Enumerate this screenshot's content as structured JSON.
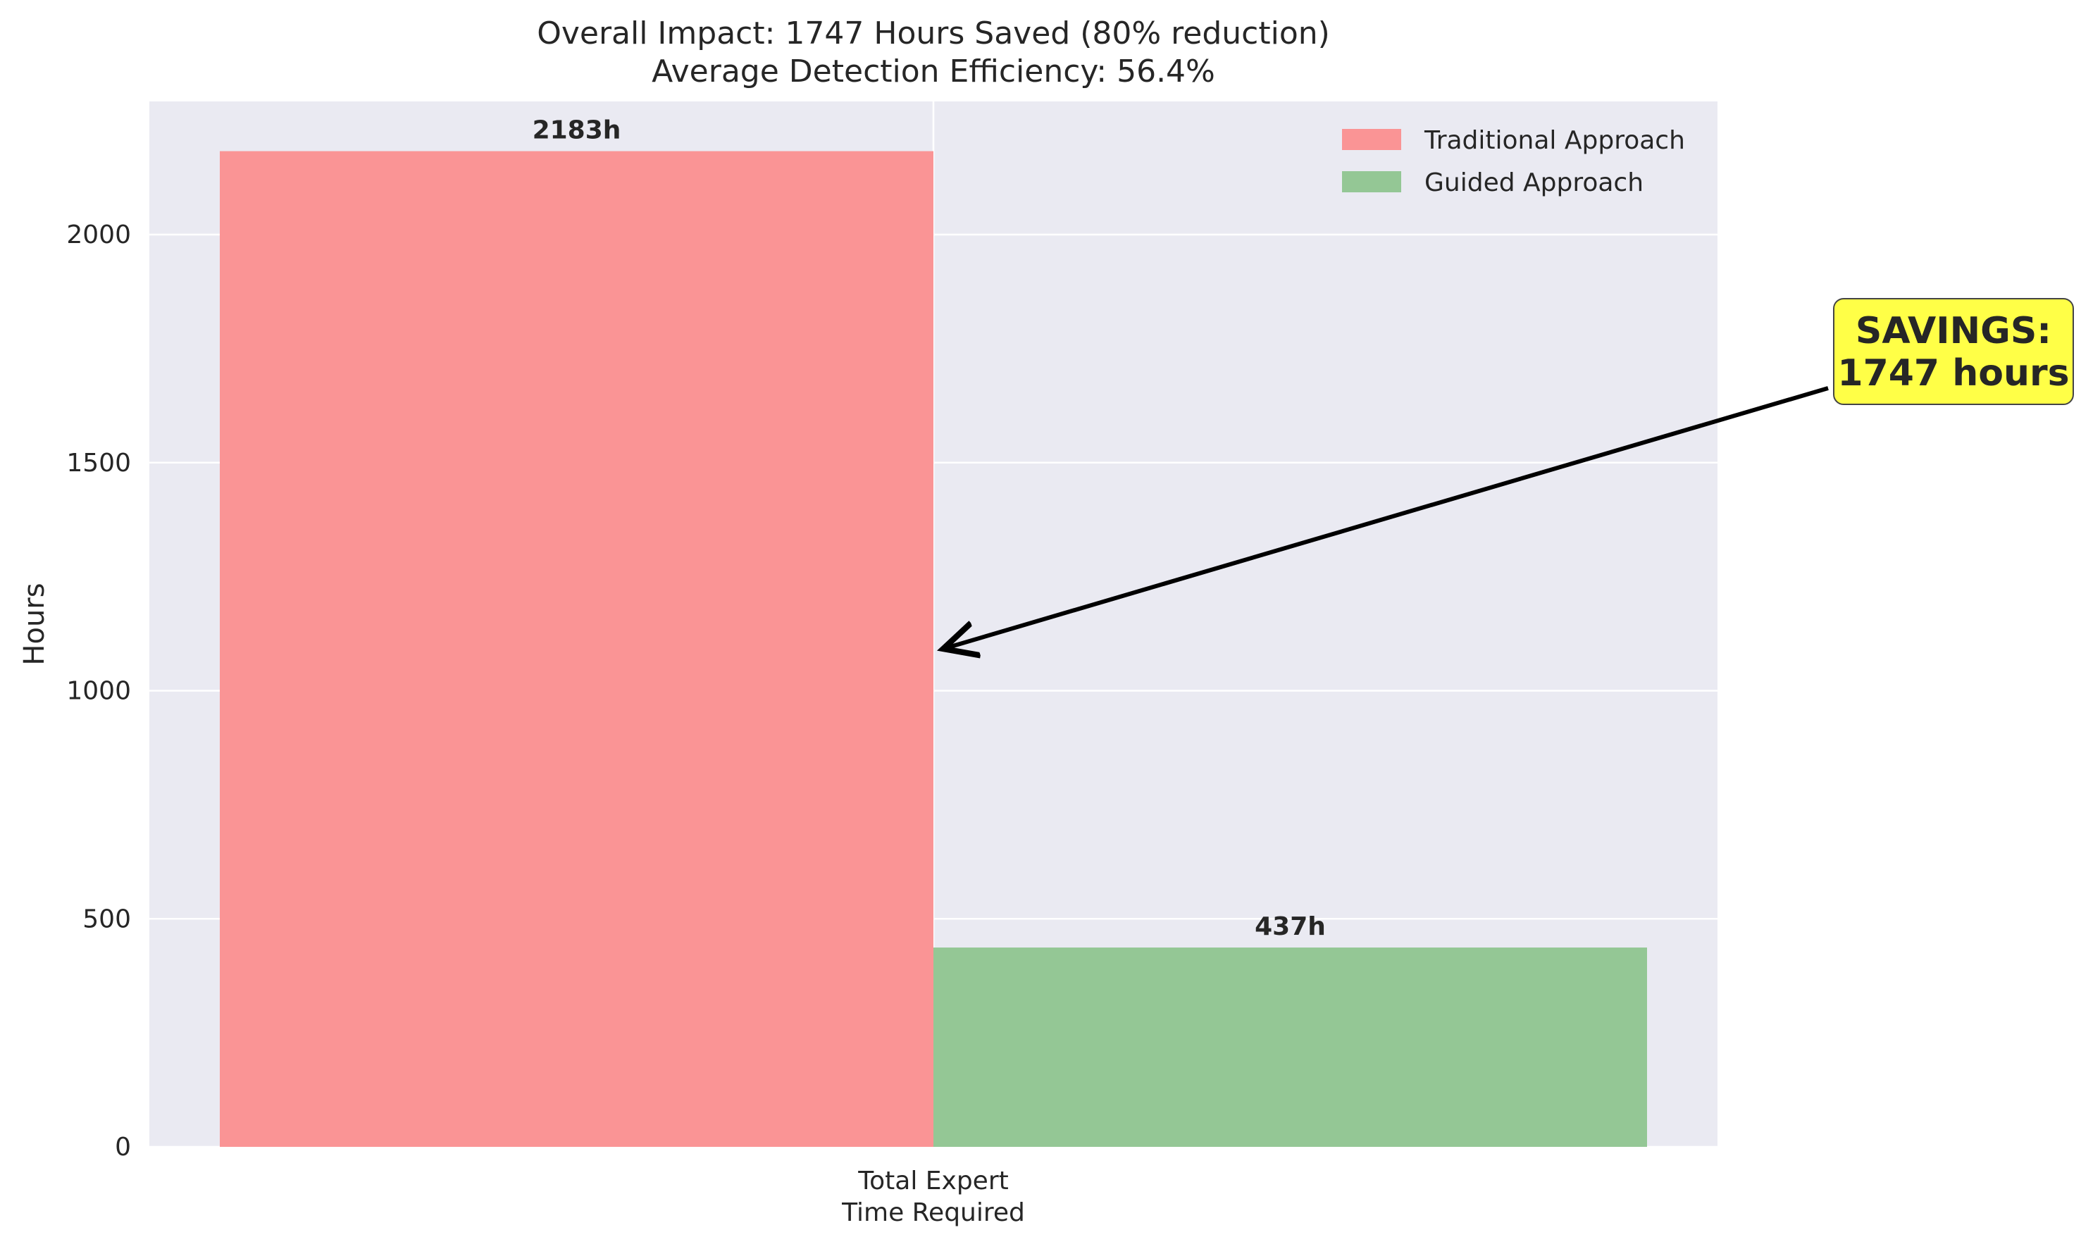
{
  "chart_data": {
    "type": "bar",
    "title_lines": [
      "Overall Impact: 1747 Hours Saved (80% reduction)",
      "Average Detection Efficiency: 56.4%"
    ],
    "xlabel": "",
    "ylabel": "Hours",
    "category_lines": [
      "Total Expert",
      "Time Required"
    ],
    "series": [
      {
        "name": "Traditional Approach",
        "values": [
          2183
        ],
        "label": "2183h",
        "color": "#fa9495"
      },
      {
        "name": "Guided Approach",
        "values": [
          437
        ],
        "label": "437h",
        "color": "#94c795"
      }
    ],
    "ylim": [
      0,
      2292
    ],
    "yticks": [
      0,
      500,
      1000,
      1500,
      2000
    ],
    "grid": true,
    "legend_position": "top-right",
    "annotation": {
      "lines": [
        "SAVINGS:",
        "1747 hours"
      ],
      "box_color": "#ffff47",
      "arrow_target_value": 1092
    },
    "colors": {
      "plot_background": "#eaeaf2",
      "grid": "#ffffff",
      "text": "#262626"
    }
  }
}
